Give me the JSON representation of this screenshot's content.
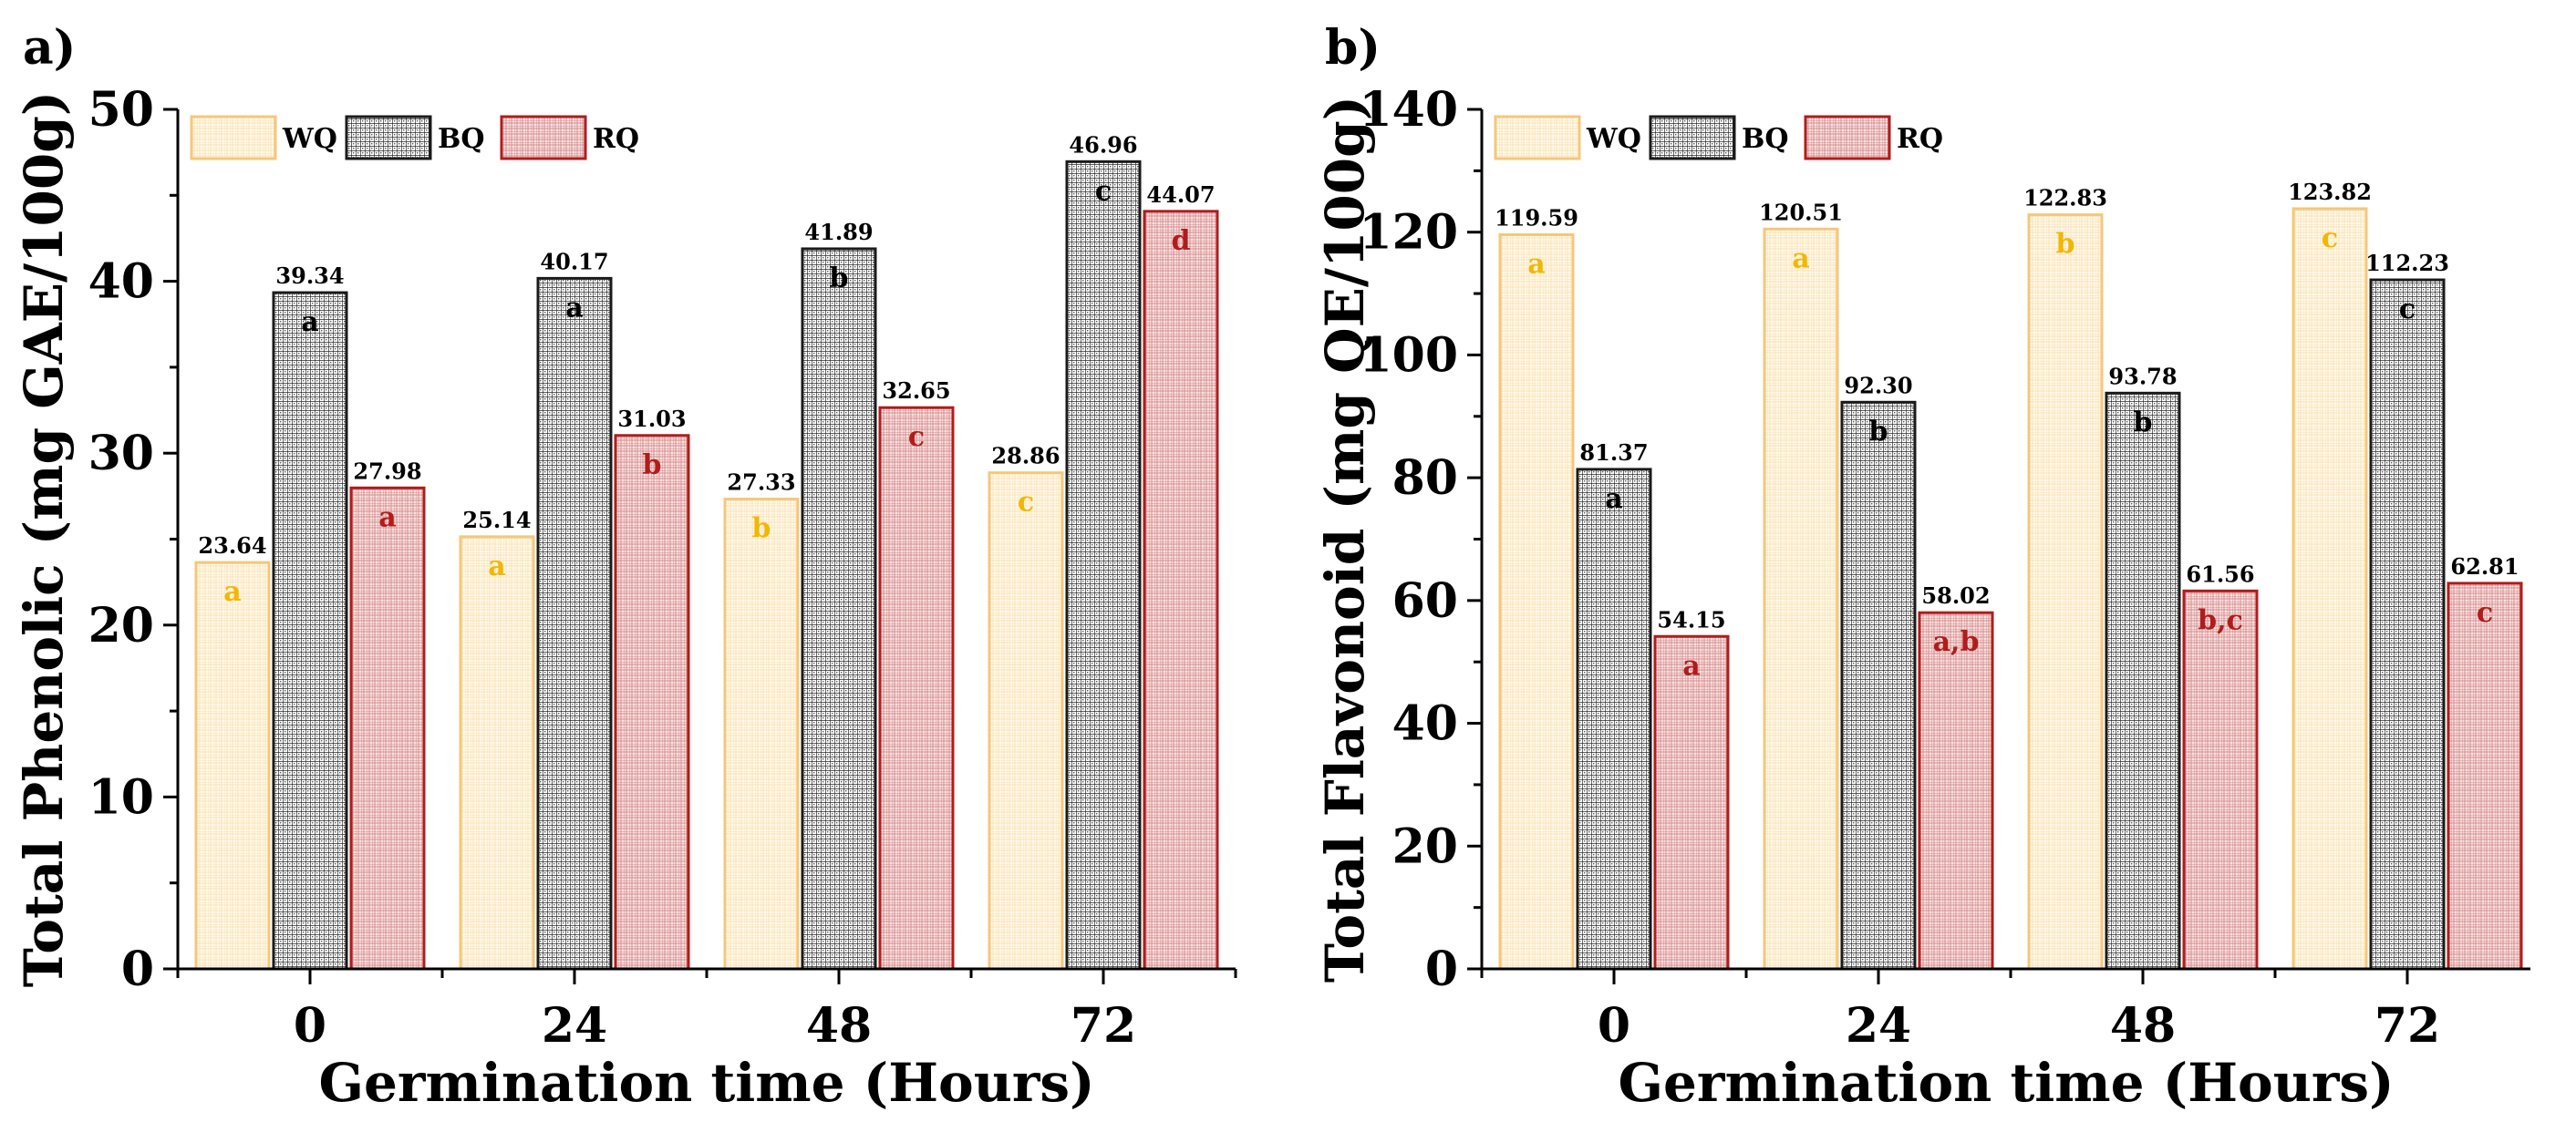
{
  "colors": {
    "WQ": {
      "fill": "url(#pat-wq)",
      "stroke": "#f5c77a",
      "letter": "#f2b705"
    },
    "BQ": {
      "fill": "url(#pat-bq)",
      "stroke": "#1a1a1a",
      "letter": "#000000"
    },
    "RQ": {
      "fill": "url(#pat-rq)",
      "stroke": "#b01c1c",
      "letter": "#b01c1c"
    }
  },
  "chart_data": [
    {
      "type": "bar",
      "panel_label": "a)",
      "categories": [
        "0",
        "24",
        "48",
        "72"
      ],
      "xlabel": "Germination time (Hours)",
      "ylabel": "Total Phenolic (mg GAE/100g)",
      "ylim": [
        0,
        50
      ],
      "yticks": [
        "0",
        "10",
        "20",
        "30",
        "40",
        "50"
      ],
      "legend_placement": "top-left",
      "series": [
        {
          "name": "WQ",
          "values": [
            23.64,
            25.14,
            27.33,
            28.86
          ],
          "value_labels": [
            "23.64",
            "25.14",
            "27.33",
            "28.86"
          ],
          "letters": [
            "a",
            "a",
            "b",
            "c"
          ]
        },
        {
          "name": "BQ",
          "values": [
            39.34,
            40.17,
            41.89,
            46.96
          ],
          "value_labels": [
            "39.34",
            "40.17",
            "41.89",
            "46.96"
          ],
          "letters": [
            "a",
            "a",
            "b",
            "c"
          ]
        },
        {
          "name": "RQ",
          "values": [
            27.98,
            31.03,
            32.65,
            44.07
          ],
          "value_labels": [
            "27.98",
            "31.03",
            "32.65",
            "44.07"
          ],
          "letters": [
            "a",
            "b",
            "c",
            "d"
          ]
        }
      ]
    },
    {
      "type": "bar",
      "panel_label": "b)",
      "categories": [
        "0",
        "24",
        "48",
        "72"
      ],
      "xlabel": "Germination time (Hours)",
      "ylabel": "Total Flavonoid (mg QE/100g)",
      "ylim": [
        0,
        140
      ],
      "yticks": [
        "0",
        "20",
        "40",
        "60",
        "80",
        "100",
        "120",
        "140"
      ],
      "legend_placement": "top-left",
      "series": [
        {
          "name": "WQ",
          "values": [
            119.59,
            120.51,
            122.83,
            123.82
          ],
          "value_labels": [
            "119.59",
            "120.51",
            "122.83",
            "123.82"
          ],
          "letters": [
            "a",
            "a",
            "b",
            "c"
          ]
        },
        {
          "name": "BQ",
          "values": [
            81.37,
            92.3,
            93.78,
            112.23
          ],
          "value_labels": [
            "81.37",
            "92.30",
            "93.78",
            "112.23"
          ],
          "letters": [
            "a",
            "b",
            "b",
            "c"
          ]
        },
        {
          "name": "RQ",
          "values": [
            54.15,
            58.02,
            61.56,
            62.81
          ],
          "value_labels": [
            "54.15",
            "58.02",
            "61.56",
            "62.81"
          ],
          "letters": [
            "a",
            "a,b",
            "b,c",
            "c"
          ]
        }
      ]
    }
  ]
}
